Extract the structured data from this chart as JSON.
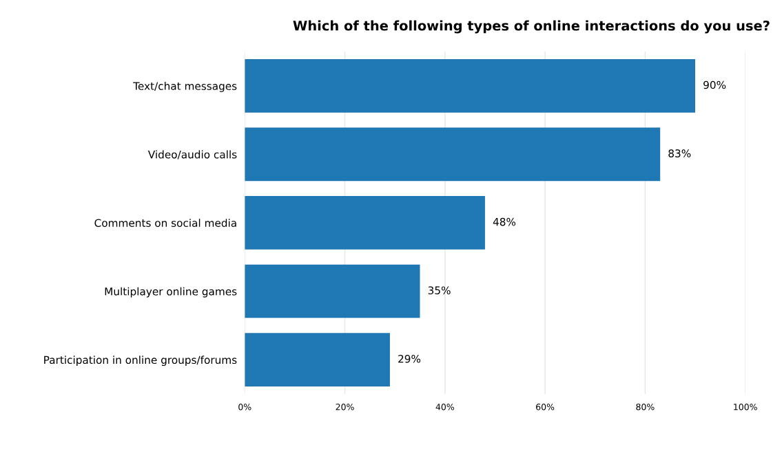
{
  "chart_data": {
    "type": "bar",
    "orientation": "horizontal",
    "title": "Which of the following types of online interactions do you use?",
    "categories": [
      "Text/chat messages",
      "Video/audio calls",
      "Comments on social media",
      "Multiplayer online games",
      "Participation in online groups/forums"
    ],
    "values": [
      90,
      83,
      48,
      35,
      29
    ],
    "value_labels": [
      "90%",
      "83%",
      "48%",
      "35%",
      "29%"
    ],
    "color": "#1f77b4",
    "xlim": [
      0,
      100
    ],
    "xticks": [
      {
        "value": 0,
        "label": "0%"
      },
      {
        "value": 20,
        "label": "20%"
      },
      {
        "value": 40,
        "label": "40%"
      },
      {
        "value": 60,
        "label": "60%"
      },
      {
        "value": 80,
        "label": "80%"
      },
      {
        "value": 100,
        "label": "100%"
      }
    ],
    "grid": "x"
  }
}
